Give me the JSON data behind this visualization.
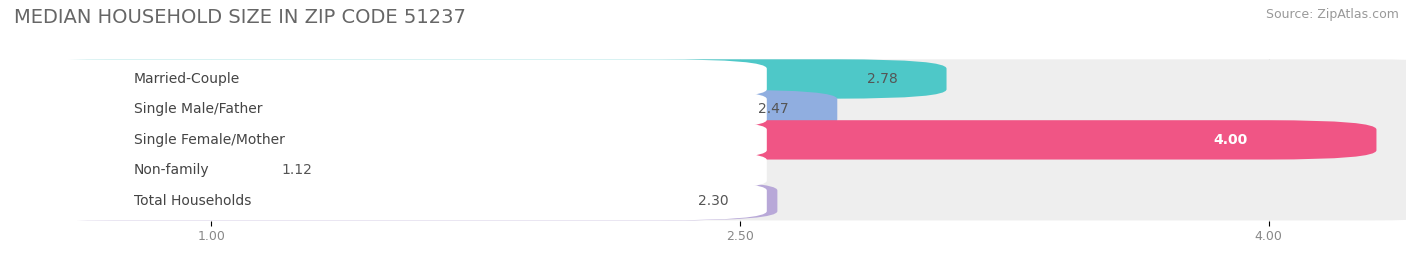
{
  "title": "MEDIAN HOUSEHOLD SIZE IN ZIP CODE 51237",
  "source": "Source: ZipAtlas.com",
  "categories": [
    "Married-Couple",
    "Single Male/Father",
    "Single Female/Mother",
    "Non-family",
    "Total Households"
  ],
  "values": [
    2.78,
    2.47,
    4.0,
    1.12,
    2.3
  ],
  "bar_colors": [
    "#4ec8c8",
    "#90aee0",
    "#f05585",
    "#f5c88a",
    "#b8a8d8"
  ],
  "value_inside": [
    false,
    false,
    true,
    false,
    false
  ],
  "xlim_data": [
    0.0,
    4.0
  ],
  "x_min": 1.0,
  "x_max": 4.0,
  "xticks": [
    1.0,
    2.5,
    4.0
  ],
  "xtick_labels": [
    "1.00",
    "2.50",
    "4.00"
  ],
  "background_color": "#ffffff",
  "bar_bg_color": "#eeeeee",
  "label_bg_color": "#ffffff",
  "title_fontsize": 14,
  "label_fontsize": 10,
  "value_fontsize": 10,
  "source_fontsize": 9
}
